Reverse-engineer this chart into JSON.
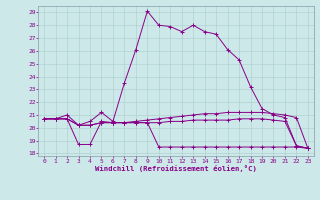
{
  "xlabel": "Windchill (Refroidissement éolien,°C)",
  "background_color": "#cce8e8",
  "line_color": "#880088",
  "grid_color": "#aacccc",
  "xlim": [
    -0.5,
    23.5
  ],
  "ylim": [
    17.8,
    29.5
  ],
  "yticks": [
    18,
    19,
    20,
    21,
    22,
    23,
    24,
    25,
    26,
    27,
    28,
    29
  ],
  "xticks": [
    0,
    1,
    2,
    3,
    4,
    5,
    6,
    7,
    8,
    9,
    10,
    11,
    12,
    13,
    14,
    15,
    16,
    17,
    18,
    19,
    20,
    21,
    22,
    23
  ],
  "series": [
    {
      "x": [
        0,
        1,
        2,
        3,
        4,
        5,
        6,
        7,
        8,
        9,
        10,
        11,
        12,
        13,
        14,
        15,
        16,
        17,
        18,
        19,
        20,
        21,
        22,
        23
      ],
      "y": [
        20.7,
        20.7,
        21.0,
        20.2,
        20.5,
        21.2,
        20.5,
        23.5,
        26.1,
        29.1,
        28.0,
        27.9,
        27.5,
        28.0,
        27.5,
        27.3,
        26.1,
        25.3,
        23.2,
        21.5,
        21.0,
        20.8,
        18.6,
        18.4
      ]
    },
    {
      "x": [
        0,
        1,
        2,
        3,
        4,
        5,
        6,
        7,
        8,
        9,
        10,
        11,
        12,
        13,
        14,
        15,
        16,
        17,
        18,
        19,
        20,
        21,
        22,
        23
      ],
      "y": [
        20.7,
        20.7,
        20.7,
        20.2,
        20.2,
        20.4,
        20.4,
        20.4,
        20.5,
        20.6,
        20.7,
        20.8,
        20.9,
        21.0,
        21.1,
        21.1,
        21.2,
        21.2,
        21.2,
        21.2,
        21.1,
        21.0,
        20.8,
        18.4
      ]
    },
    {
      "x": [
        0,
        1,
        2,
        3,
        4,
        5,
        6,
        7,
        8,
        9,
        10,
        11,
        12,
        13,
        14,
        15,
        16,
        17,
        18,
        19,
        20,
        21,
        22,
        23
      ],
      "y": [
        20.7,
        20.7,
        20.7,
        20.2,
        20.2,
        20.4,
        20.4,
        20.4,
        20.4,
        20.4,
        20.4,
        20.5,
        20.5,
        20.6,
        20.6,
        20.6,
        20.6,
        20.7,
        20.7,
        20.7,
        20.6,
        20.5,
        18.6,
        18.4
      ]
    },
    {
      "x": [
        0,
        1,
        2,
        3,
        4,
        5,
        6,
        7,
        8,
        9,
        10,
        11,
        12,
        13,
        14,
        15,
        16,
        17,
        18,
        19,
        20,
        21,
        22,
        23
      ],
      "y": [
        20.7,
        20.7,
        20.7,
        18.7,
        18.7,
        20.5,
        20.4,
        20.4,
        20.4,
        20.4,
        18.5,
        18.5,
        18.5,
        18.5,
        18.5,
        18.5,
        18.5,
        18.5,
        18.5,
        18.5,
        18.5,
        18.5,
        18.5,
        18.4
      ]
    }
  ]
}
